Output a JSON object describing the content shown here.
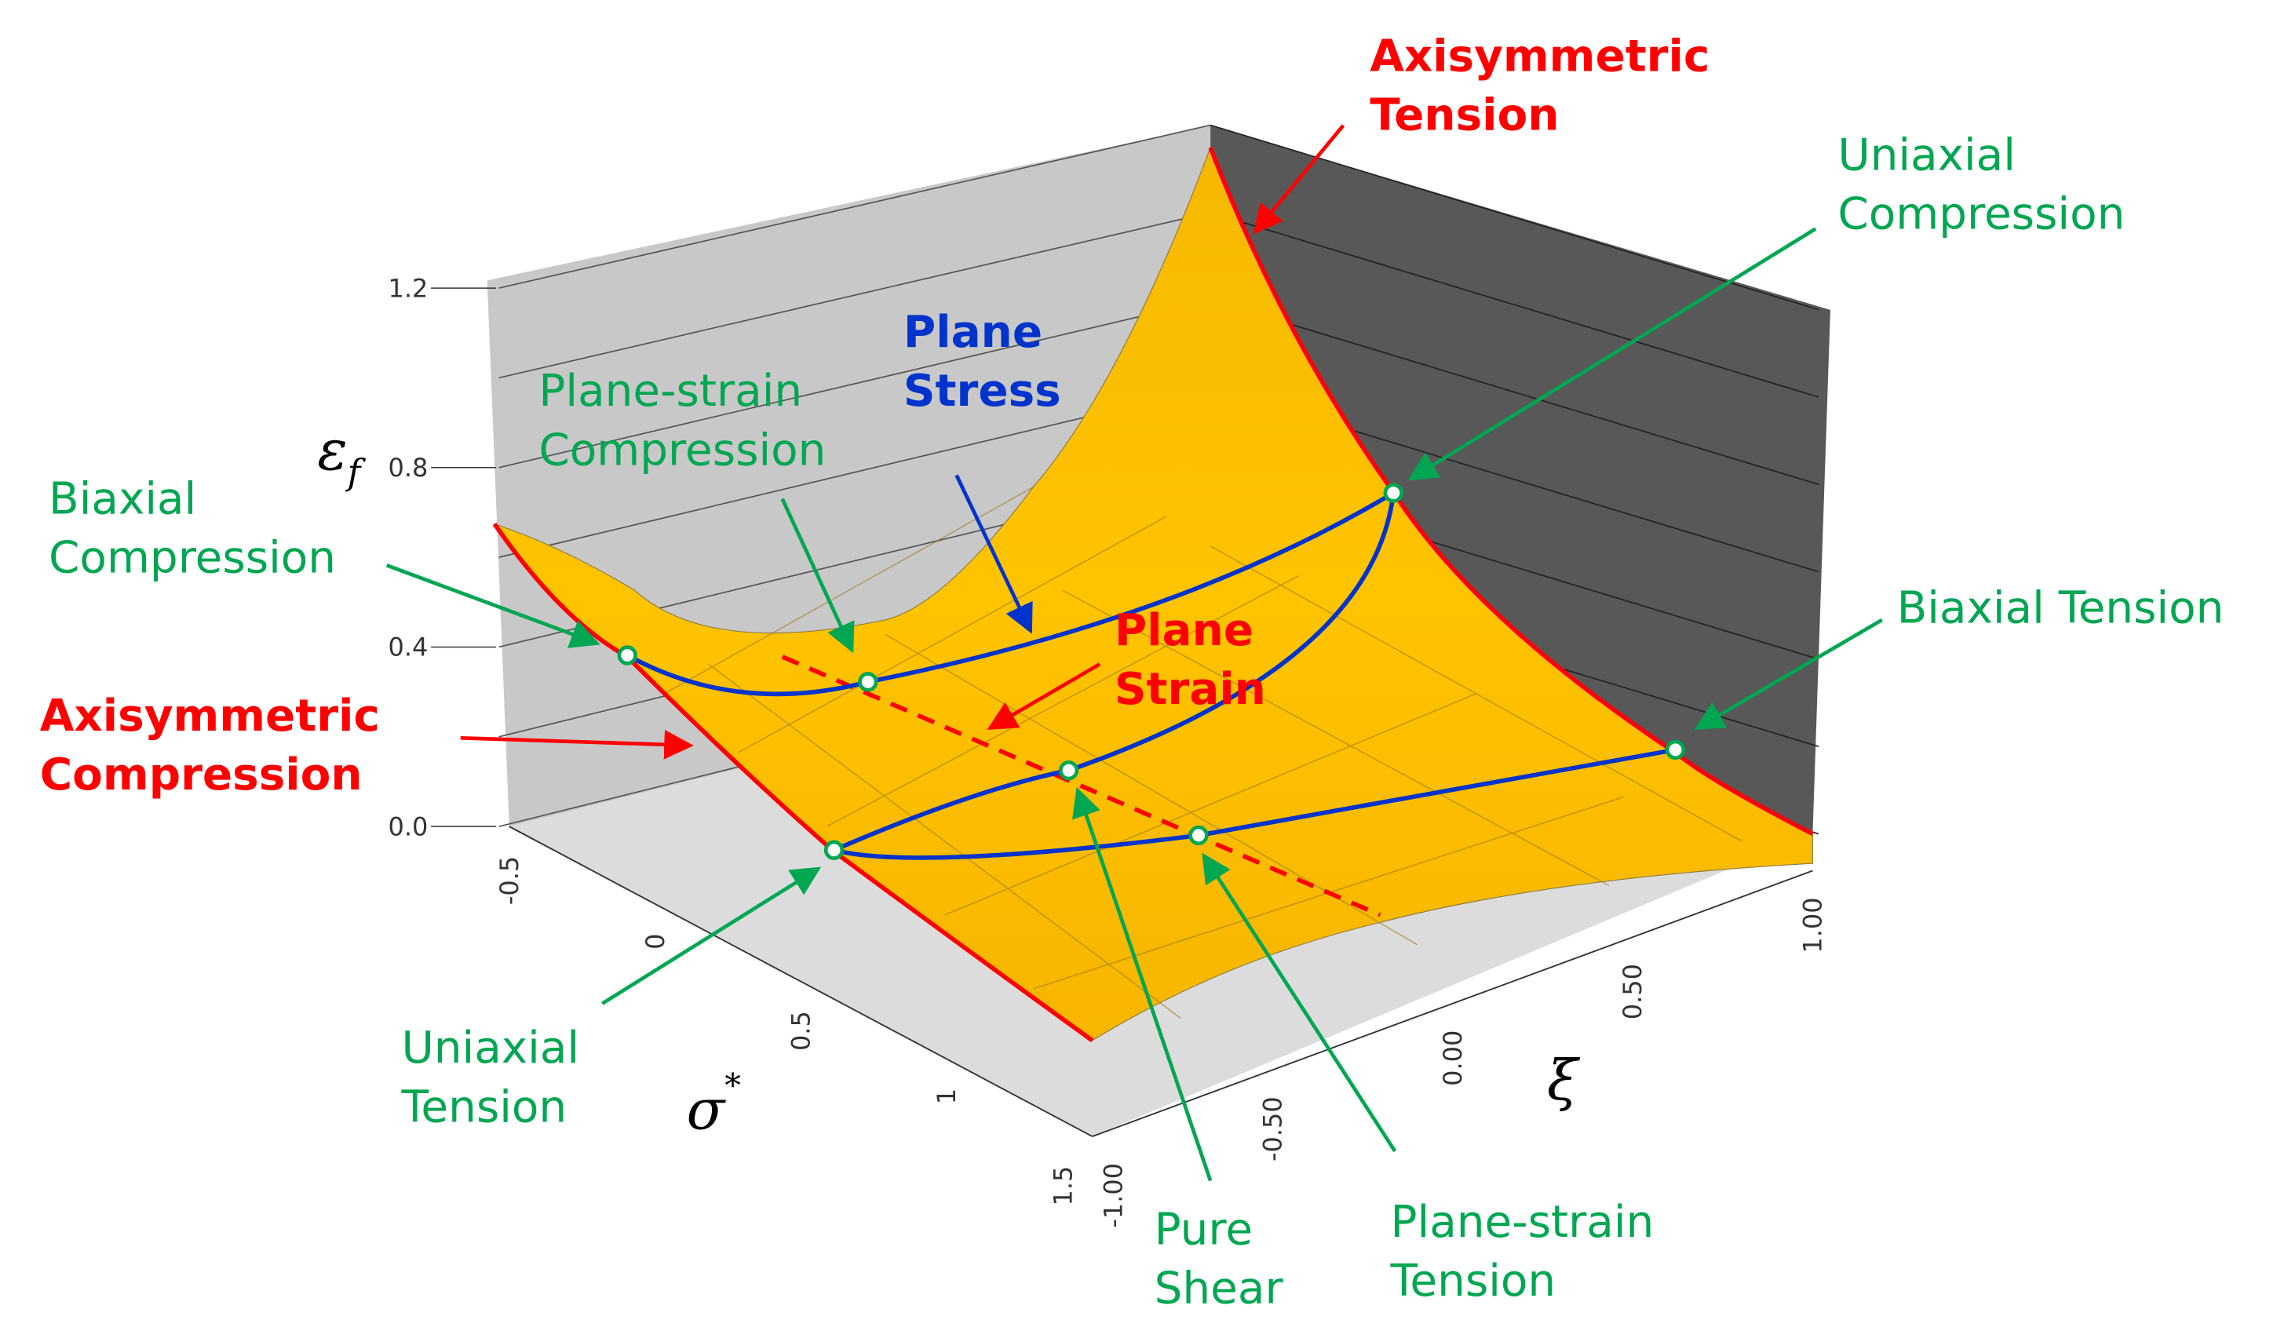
{
  "chart_data": {
    "type": "surface",
    "title": "",
    "zlabel": "ε",
    "zlabel_sub": "f",
    "xlabel": "σ",
    "xlabel_sup": "*",
    "ylabel": "ξ",
    "zticks": [
      "0.0",
      "0.4",
      "0.8",
      "1.2"
    ],
    "zlim": [
      0,
      1.2
    ],
    "sigma_ticks": [
      "-0.5",
      "0",
      "0.5",
      "1",
      "1.5"
    ],
    "xi_ticks": [
      "-1.00",
      "-0.50",
      "0.00",
      "0.50",
      "1.00"
    ],
    "colors": {
      "surface": "#ffc000",
      "axisym": "#ff0000",
      "plane_stress": "#0033cc",
      "points": "#00a651",
      "left_wall": "#c8c8c8",
      "right_wall": "#585858",
      "floor": "#dcdcdc"
    },
    "annotations": [
      {
        "id": "axisym-tension",
        "lines": [
          "Axisymmetric",
          "Tension"
        ],
        "color": "red"
      },
      {
        "id": "uniaxial-compression",
        "lines": [
          "Uniaxial",
          "Compression"
        ],
        "color": "green"
      },
      {
        "id": "plane-stress",
        "lines": [
          "Plane",
          "Stress"
        ],
        "color": "blue"
      },
      {
        "id": "plane-strain-compression",
        "lines": [
          "Plane-strain",
          "Compression"
        ],
        "color": "green"
      },
      {
        "id": "biaxial-compression",
        "lines": [
          "Biaxial",
          "Compression"
        ],
        "color": "green"
      },
      {
        "id": "plane-strain",
        "lines": [
          "Plane",
          "Strain"
        ],
        "color": "red"
      },
      {
        "id": "biaxial-tension",
        "lines": [
          "Biaxial Tension"
        ],
        "color": "green"
      },
      {
        "id": "axisym-compression",
        "lines": [
          "Axisymmetric",
          "Compression"
        ],
        "color": "red"
      },
      {
        "id": "uniaxial-tension",
        "lines": [
          "Uniaxial",
          "Tension"
        ],
        "color": "green"
      },
      {
        "id": "pure-shear",
        "lines": [
          "Pure",
          "Shear"
        ],
        "color": "green"
      },
      {
        "id": "plane-strain-tension",
        "lines": [
          "Plane-strain",
          "Tension"
        ],
        "color": "green"
      }
    ]
  }
}
